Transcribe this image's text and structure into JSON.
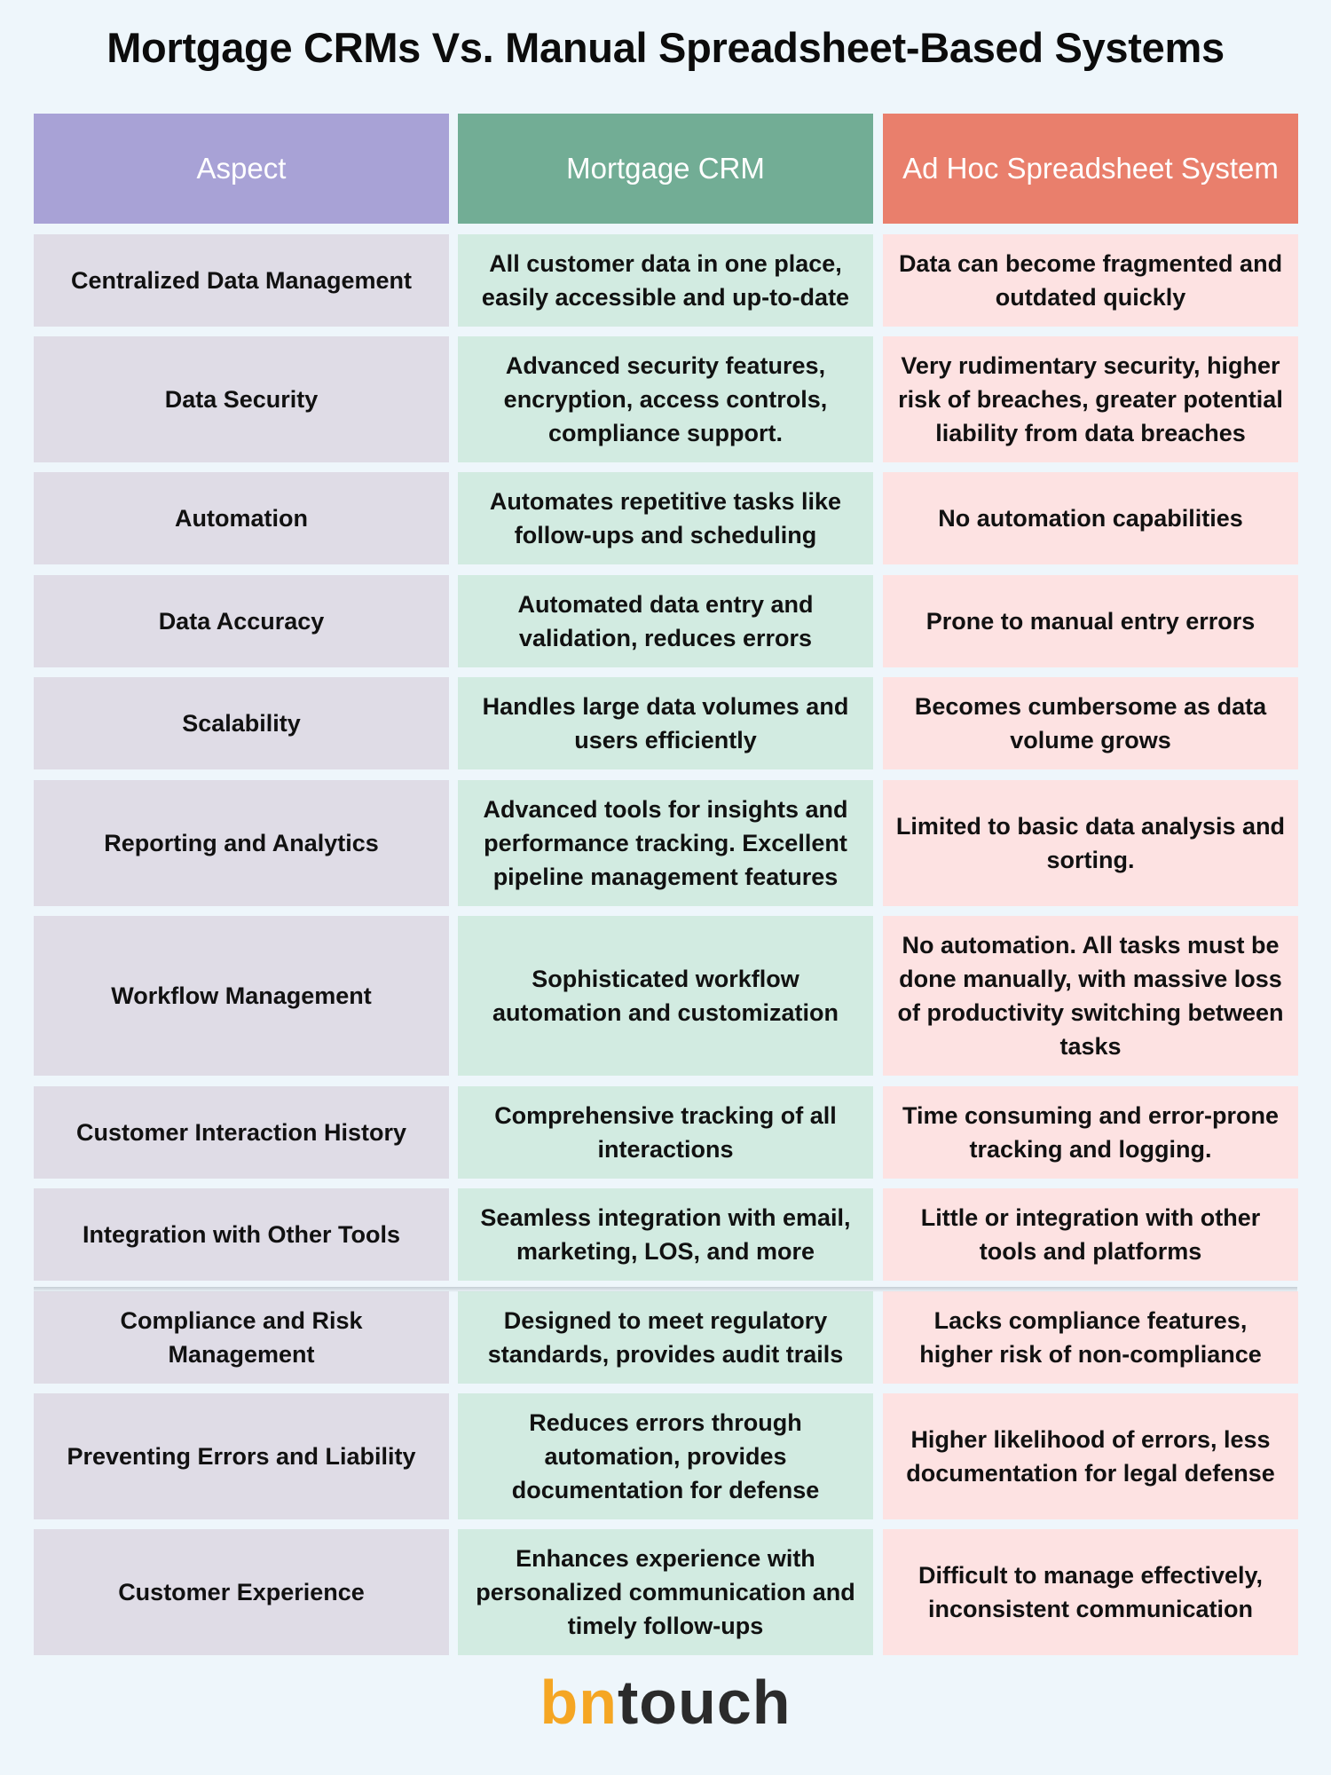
{
  "title": "Mortgage CRMs Vs. Manual Spreadsheet-Based Systems",
  "header": {
    "aspect": "Aspect",
    "crm": "Mortgage CRM",
    "spreadsheet": "Ad Hoc Spreadsheet System"
  },
  "rows": [
    {
      "aspect": "Centralized Data Management",
      "crm": "All customer data in one place, easily accessible and up-to-date",
      "spreadsheet": "Data can become fragmented and outdated quickly"
    },
    {
      "aspect": "Data Security",
      "crm": "Advanced security features, encryption, access controls, compliance support.",
      "spreadsheet": "Very rudimentary security, higher risk of breaches, greater potential liability from data breaches"
    },
    {
      "aspect": "Automation",
      "crm": "Automates repetitive tasks like follow-ups and scheduling",
      "spreadsheet": "No automation capabilities"
    },
    {
      "aspect": "Data Accuracy",
      "crm": "Automated data entry and validation, reduces errors",
      "spreadsheet": "Prone to manual entry errors"
    },
    {
      "aspect": "Scalability",
      "crm": "Handles large data volumes and users efficiently",
      "spreadsheet": "Becomes cumbersome as data volume grows"
    },
    {
      "aspect": "Reporting and Analytics",
      "crm": "Advanced tools for insights and performance tracking. Excellent pipeline management features",
      "spreadsheet": "Limited to basic data analysis and sorting."
    },
    {
      "aspect": "Workflow Management",
      "crm": "Sophisticated workflow automation and customization",
      "spreadsheet": "No automation. All tasks must be done manually, with massive loss of productivity switching between tasks"
    },
    {
      "aspect": "Customer Interaction History",
      "crm": "Comprehensive tracking of all interactions",
      "spreadsheet": "Time consuming and error-prone tracking and logging."
    },
    {
      "aspect": "Integration with Other Tools",
      "crm": "Seamless integration with email, marketing, LOS, and more",
      "spreadsheet": "Little or integration with other tools and platforms"
    },
    {
      "aspect": "Compliance and Risk Management",
      "crm": "Designed to meet regulatory standards, provides audit trails",
      "spreadsheet": "Lacks compliance features, higher risk of non-compliance"
    },
    {
      "aspect": "Preventing Errors and Liability",
      "crm": "Reduces errors through automation, provides documentation for defense",
      "spreadsheet": "Higher likelihood of errors, less documentation for legal defense"
    },
    {
      "aspect": "Customer Experience",
      "crm": "Enhances experience with personalized communication and timely follow-ups",
      "spreadsheet": "Difficult to manage effectively, inconsistent communication"
    }
  ],
  "logo": {
    "part1": "bn",
    "part2": "touch"
  },
  "colors": {
    "aspect_header": "#a8a2d6",
    "crm_header": "#72ad95",
    "spreadsheet_header": "#e97f6c",
    "aspect_cell": "#dfdce6",
    "crm_cell": "#d2ebe1",
    "spreadsheet_cell": "#fde2e2",
    "logo_accent": "#f5a623"
  }
}
